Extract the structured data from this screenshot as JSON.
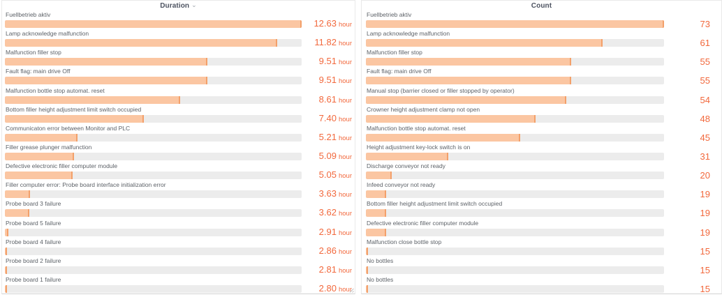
{
  "colors": {
    "bar_fill": "#fbc6a2",
    "bar_edge": "#f3a06a",
    "bar_track": "#ececec",
    "value_text": "#f2683c",
    "label_text": "#5d6268",
    "header_text": "#4c5260"
  },
  "chart_data": [
    {
      "type": "bar",
      "orientation": "horizontal",
      "title": "Duration",
      "unit": "hour",
      "sort_icon": "chevron-down",
      "bar_scale": "min-max",
      "value_labels_position": "right",
      "categories": [
        "Fuellbetrieb aktiv",
        "Lamp acknowledge malfunction",
        "Malfunction filler stop",
        "Fault flag: main drive Off",
        "Malfunction bottle stop automat. reset",
        "Bottom filler height adjustment limit switch occupied",
        "Communicaton error between Monitor and PLC",
        "Filler grease plunger malfunction",
        "Defective electronic filler computer module",
        "Filler computer error: Probe board interface initialization error",
        "Probe board 3 failure",
        "Probe board 5 failure",
        "Probe board 4 failure",
        "Probe board 2 failure",
        "Probe board 1 failure"
      ],
      "values": [
        12.63,
        11.82,
        9.51,
        9.51,
        8.61,
        7.4,
        5.21,
        5.09,
        5.05,
        3.63,
        3.62,
        2.91,
        2.86,
        2.81,
        2.8
      ],
      "display_values": [
        "12.63",
        "11.82",
        "9.51",
        "9.51",
        "8.61",
        "7.40",
        "5.21",
        "5.09",
        "5.05",
        "3.63",
        "3.62",
        "2.91",
        "2.86",
        "2.81",
        "2.80"
      ]
    },
    {
      "type": "bar",
      "orientation": "horizontal",
      "title": "Count",
      "unit": "",
      "bar_scale": "min-max",
      "value_labels_position": "right",
      "categories": [
        "Fuellbetrieb aktiv",
        "Lamp acknowledge malfunction",
        "Malfunction filler stop",
        "Fault flag: main drive Off",
        "Manual stop (barrier closed or filler stopped by operator)",
        "Crowner height adjustment clamp not open",
        "Malfunction bottle stop automat. reset",
        "Height adjustment key-lock switch is on",
        "Discharge conveyor not ready",
        "Infeed conveyor not ready",
        "Bottom filler height adjustment limit switch occupied",
        "Defective electronic filler computer module",
        "Malfunction close bottle stop",
        "No bottles",
        "No bottles"
      ],
      "values": [
        73,
        61,
        55,
        55,
        54,
        48,
        45,
        31,
        20,
        19,
        19,
        19,
        15,
        15,
        15
      ],
      "display_values": [
        "73",
        "61",
        "55",
        "55",
        "54",
        "48",
        "45",
        "31",
        "20",
        "19",
        "19",
        "19",
        "15",
        "15",
        "15"
      ]
    }
  ]
}
